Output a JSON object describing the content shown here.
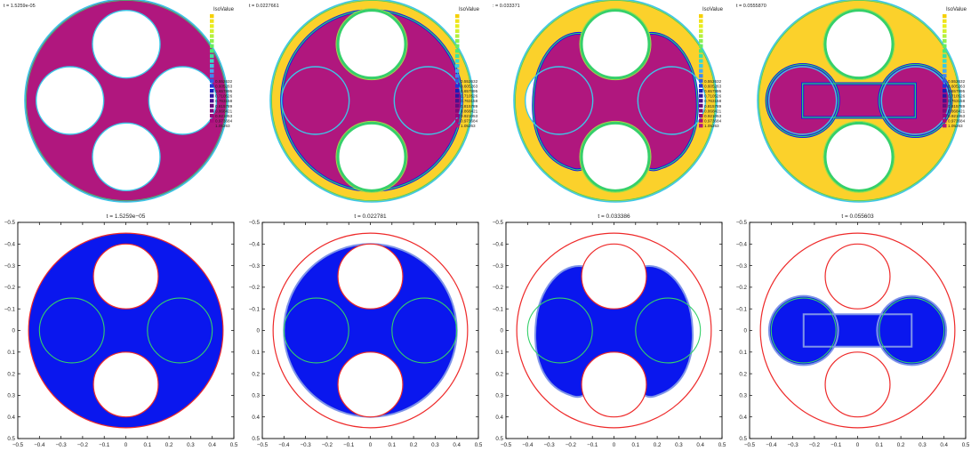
{
  "colors": {
    "magenta": "#b0177e",
    "yellow": "#fbd12b",
    "blue": "#0a17ee",
    "red": "#ee2a2a",
    "green": "#35d06a",
    "cyan": "#3cc8e8",
    "lime": "#9ee04a"
  },
  "legend_title": "IsoValue",
  "legend_swatches": [
    "#f5d000",
    "#f0e21a",
    "#e8ee1e",
    "#d2f030",
    "#b4f040",
    "#8ef04e",
    "#66ec60",
    "#4ae878",
    "#3ce2a0",
    "#38dcc6",
    "#3cc8e4",
    "#42aaf2",
    "#3e86f0",
    "#2e5ae8",
    "#1e34d8",
    "#1a1cb8",
    "#2c14a4",
    "#48108e",
    "#640c80",
    "#7e0a7c",
    "#96087c",
    "#a60a7c",
    "#b0177e"
  ],
  "legend_values": [
    "",
    "",
    "",
    "",
    "",
    "",
    "",
    "",
    "",
    "",
    "",
    "",
    "",
    "0.552632",
    "0.605263",
    "0.657895",
    "0.710526",
    "0.763158",
    "0.815789",
    "0.868421",
    "0.921053",
    "0.973684",
    "1.05263"
  ],
  "chart_data": [
    {
      "type": "contour",
      "title": "t = 1.5259e-05",
      "stage": 1
    },
    {
      "type": "contour",
      "title": "t = 0.0227661",
      "stage": 2
    },
    {
      "type": "contour",
      "title": ": = 0.033371",
      "stage": 3
    },
    {
      "type": "contour",
      "title": "t = 0.0555870",
      "stage": 4
    },
    {
      "type": "region",
      "title": "t = 1.5259e−05",
      "stage": 1,
      "xlim": [
        -0.5,
        0.5
      ],
      "ylim": [
        -0.5,
        0.5
      ],
      "xticks": [
        "−0.5",
        "−0.4",
        "−0.3",
        "−0.2",
        "−0.1",
        "0",
        "0.1",
        "0.2",
        "0.3",
        "0.4",
        "0.5"
      ],
      "yticks": [
        "−0.5",
        "−0.4",
        "−0.3",
        "−0.2",
        "−0.1",
        "0",
        "0.1",
        "0.2",
        "0.3",
        "0.4",
        "0.5"
      ],
      "outer_radius": 0.45,
      "hole_radius": 0.15,
      "holes_top_bottom": 0.25,
      "circles_left_right": 0.25
    },
    {
      "type": "region",
      "title": "t = 0.022781",
      "stage": 2,
      "xlim": [
        -0.5,
        0.5
      ],
      "ylim": [
        -0.5,
        0.5
      ],
      "xticks": [
        "−0.5",
        "−0.4",
        "−0.3",
        "−0.2",
        "−0.1",
        "0",
        "0.1",
        "0.2",
        "0.3",
        "0.4",
        "0.5"
      ],
      "yticks": [
        "−0.5",
        "−0.4",
        "−0.3",
        "−0.2",
        "−0.1",
        "0",
        "0.1",
        "0.2",
        "0.3",
        "0.4",
        "0.5"
      ],
      "outer_radius": 0.45,
      "hole_radius": 0.15,
      "holes_top_bottom": 0.25,
      "circles_left_right": 0.25
    },
    {
      "type": "region",
      "title": "t = 0.033386",
      "stage": 3,
      "xlim": [
        -0.5,
        0.5
      ],
      "ylim": [
        -0.5,
        0.5
      ],
      "xticks": [
        "−0.5",
        "−0.4",
        "−0.3",
        "−0.2",
        "−0.1",
        "0",
        "0.1",
        "0.2",
        "0.3",
        "0.4",
        "0.5"
      ],
      "yticks": [
        "−0.5",
        "−0.4",
        "−0.3",
        "−0.2",
        "−0.1",
        "0",
        "0.1",
        "0.2",
        "0.3",
        "0.4",
        "0.5"
      ],
      "outer_radius": 0.45,
      "hole_radius": 0.15,
      "holes_top_bottom": 0.25,
      "circles_left_right": 0.25
    },
    {
      "type": "region",
      "title": "t = 0.055603",
      "stage": 4,
      "xlim": [
        -0.5,
        0.5
      ],
      "ylim": [
        -0.5,
        0.5
      ],
      "xticks": [
        "−0.5",
        "−0.4",
        "−0.3",
        "−0.2",
        "−0.1",
        "0",
        "0.1",
        "0.2",
        "0.3",
        "0.4",
        "0.5"
      ],
      "yticks": [
        "−0.5",
        "−0.4",
        "−0.3",
        "−0.2",
        "−0.1",
        "0",
        "0.1",
        "0.2",
        "0.3",
        "0.4",
        "0.5"
      ],
      "outer_radius": 0.45,
      "hole_radius": 0.15,
      "holes_top_bottom": 0.25,
      "circles_left_right": 0.25
    }
  ]
}
